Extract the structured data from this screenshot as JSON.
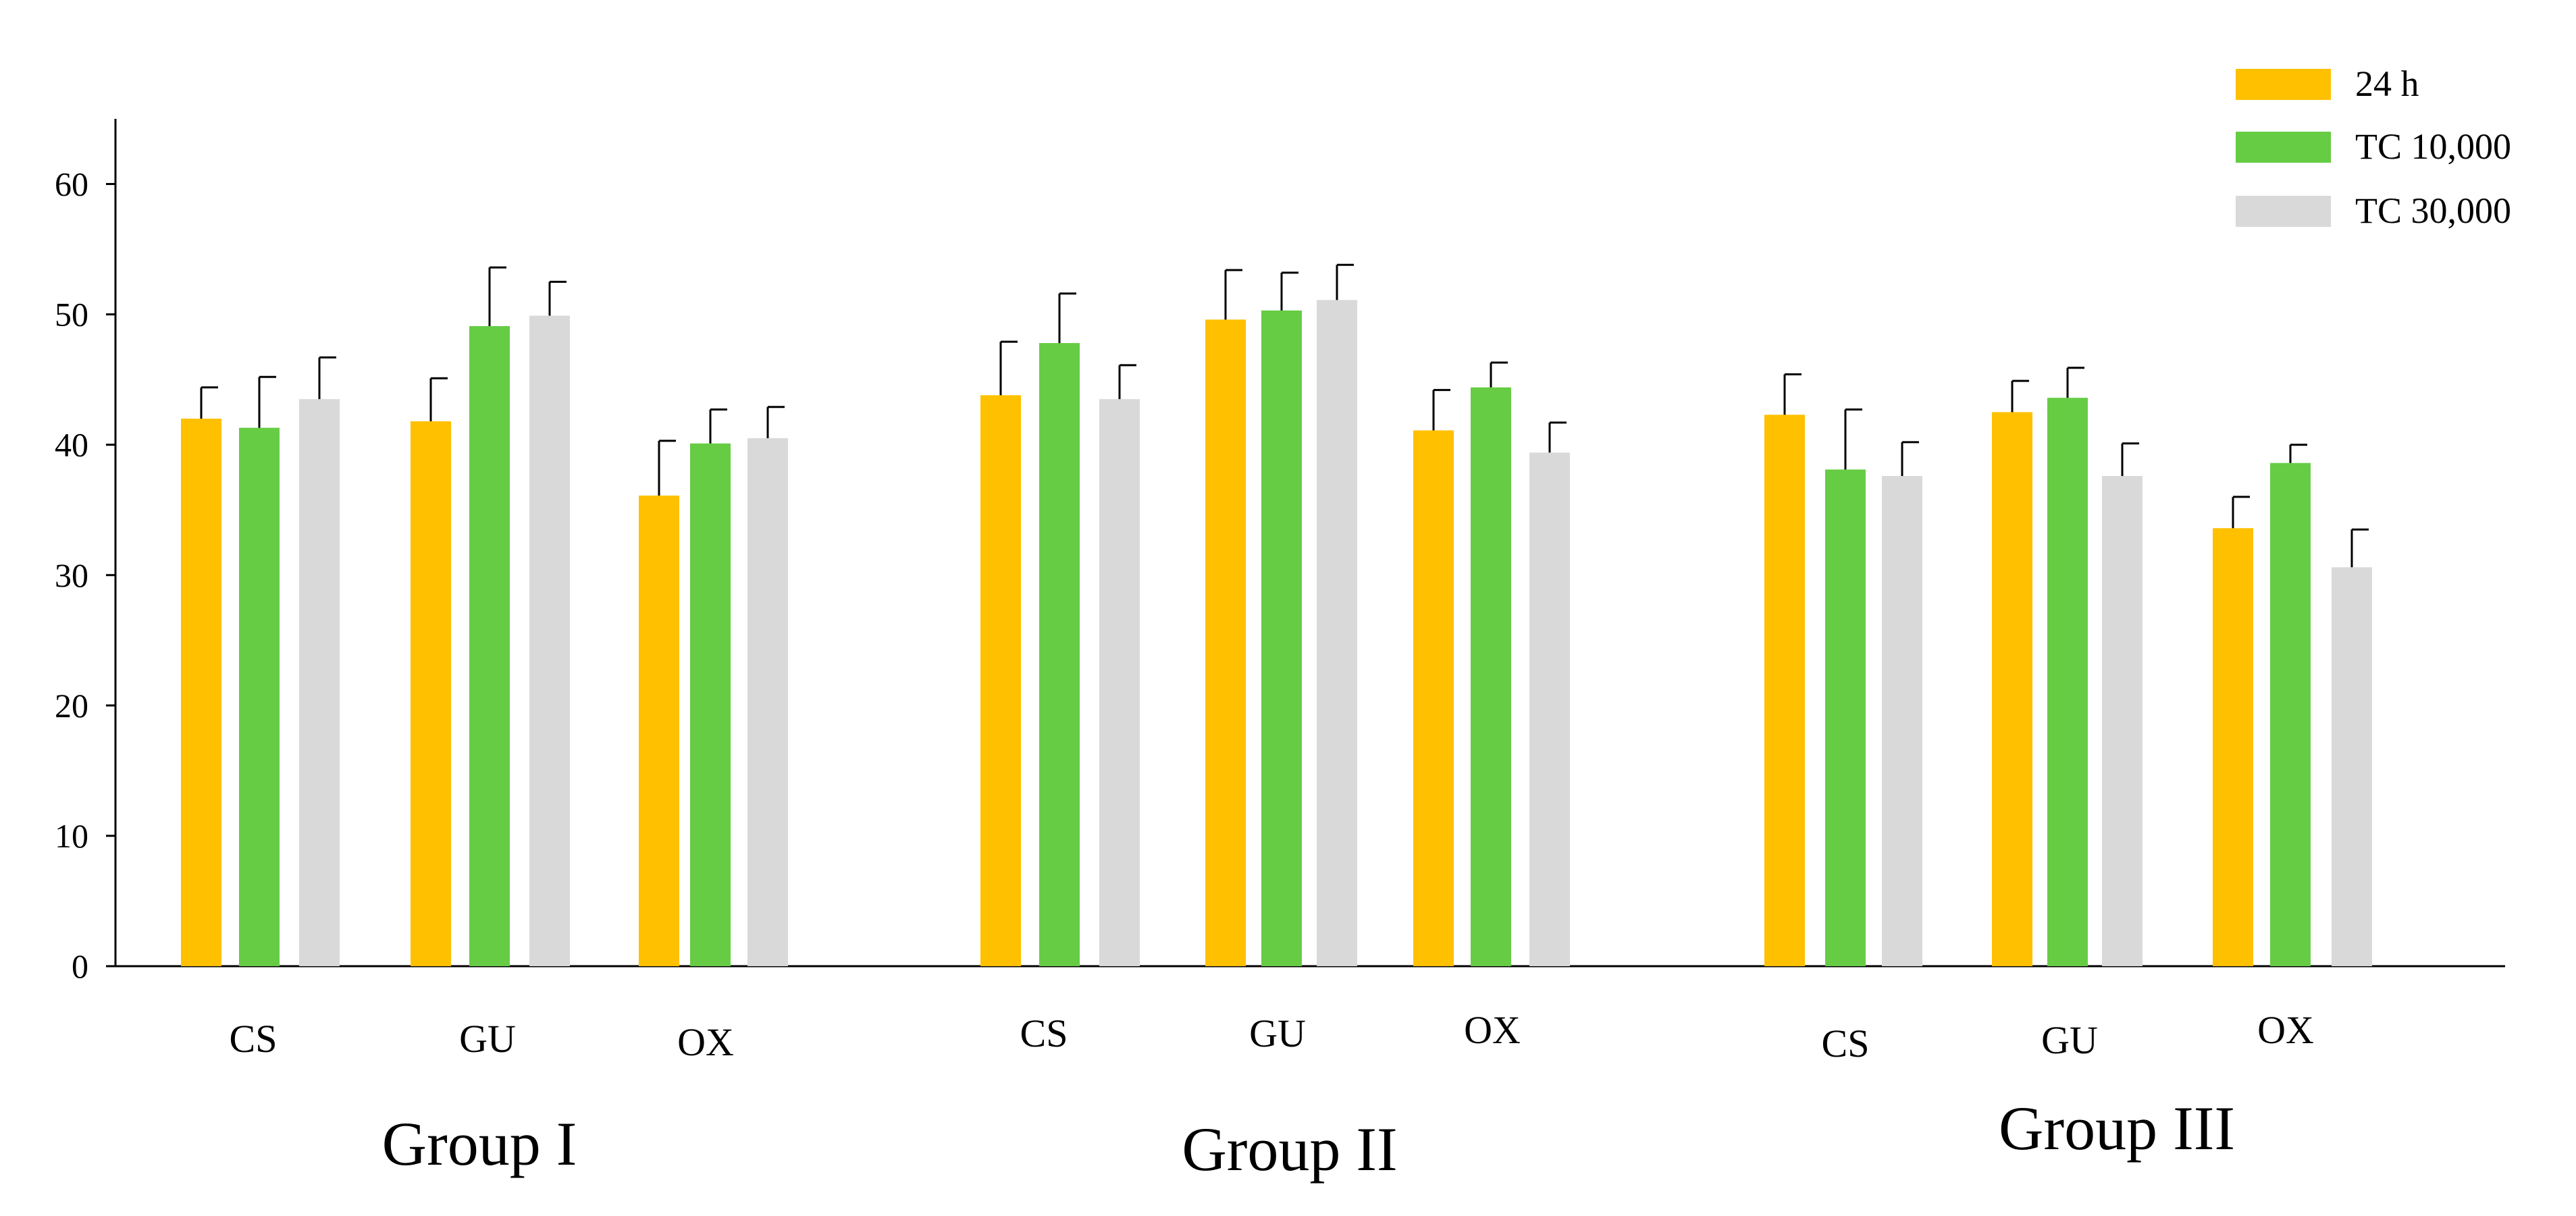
{
  "chart_data": {
    "type": "bar",
    "title": "",
    "xlabel": "",
    "ylabel": "",
    "ylim": [
      0,
      65
    ],
    "yticks": [
      0,
      10,
      20,
      30,
      40,
      50,
      60
    ],
    "grid": false,
    "legend_position": "top-right",
    "groups": [
      "Group I",
      "Group II",
      "Group III"
    ],
    "categories": [
      "CS",
      "GU",
      "OX"
    ],
    "series": [
      {
        "name": "24 h",
        "color": "#FFC000",
        "values": [
          [
            42,
            41.8,
            36.1
          ],
          [
            43.8,
            49.6,
            41.1
          ],
          [
            42.3,
            42.5,
            33.6
          ]
        ],
        "errors": [
          [
            2.4,
            3.3,
            4.2
          ],
          [
            4.1,
            3.8,
            3.1
          ],
          [
            3.1,
            2.4,
            2.4
          ]
        ]
      },
      {
        "name": "TC 10,000",
        "color": "#66CC44",
        "values": [
          [
            41.3,
            49.1,
            40.1
          ],
          [
            47.8,
            50.3,
            44.4
          ],
          [
            38.1,
            43.6,
            38.6
          ]
        ],
        "errors": [
          [
            3.9,
            4.5,
            2.6
          ],
          [
            3.8,
            2.9,
            1.9
          ],
          [
            4.6,
            2.3,
            1.4
          ]
        ]
      },
      {
        "name": "TC 30,000",
        "color": "#D9D9D9",
        "values": [
          [
            43.5,
            49.9,
            40.5
          ],
          [
            43.5,
            51.1,
            39.4
          ],
          [
            37.6,
            37.6,
            30.6
          ]
        ],
        "errors": [
          [
            3.2,
            2.6,
            2.4
          ],
          [
            2.6,
            2.7,
            2.3
          ],
          [
            2.6,
            2.5,
            2.9
          ]
        ]
      }
    ]
  }
}
